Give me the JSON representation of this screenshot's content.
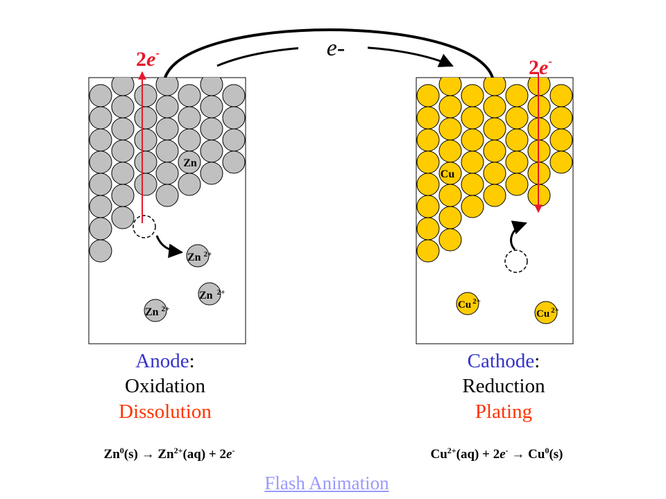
{
  "electron_flow": {
    "label_base": "e",
    "label_sup": "-"
  },
  "anode": {
    "electrons": {
      "coef": "2",
      "base": "e",
      "sup": "-"
    },
    "atom_label": "Zn",
    "ions": [
      {
        "base": "Zn",
        "sup": "2+"
      },
      {
        "base": "Zn",
        "sup": "2+"
      },
      {
        "base": "Zn",
        "sup": "2+"
      }
    ],
    "role": "Anode",
    "colon": ":",
    "process": "Oxidation",
    "result": "Dissolution",
    "equation": {
      "p1": "Zn",
      "p1_sup": "0",
      "p2": "(s) ",
      "arrow": "→",
      "p3": " Zn",
      "p3_sup": "2+",
      "p4": "(aq) + 2",
      "p5": "e",
      "p5_sup": "-"
    },
    "atom_color": "#c0c0c0"
  },
  "cathode": {
    "electrons": {
      "coef": "2",
      "base": "e",
      "sup": "-"
    },
    "atom_label": "Cu",
    "ions": [
      {
        "base": "Cu",
        "sup": "2+"
      },
      {
        "base": "Cu",
        "sup": "2+"
      }
    ],
    "role": "Cathode",
    "colon": ":",
    "process": "Reduction",
    "result": "Plating",
    "equation": {
      "p1": "Cu",
      "p1_sup": "2+",
      "p2": "(aq) + 2",
      "p3": "e",
      "p3_sup": "-",
      "arrow": "→",
      "p4": " Cu",
      "p4_sup": "0",
      "p5": "(s)"
    },
    "atom_color": "#ffcc00"
  },
  "link": {
    "label": "Flash Animation"
  },
  "colors": {
    "electron_red": "#e8192c",
    "role_blue": "#3333cc",
    "result_orange": "#ff3300",
    "text_black": "#000000"
  }
}
